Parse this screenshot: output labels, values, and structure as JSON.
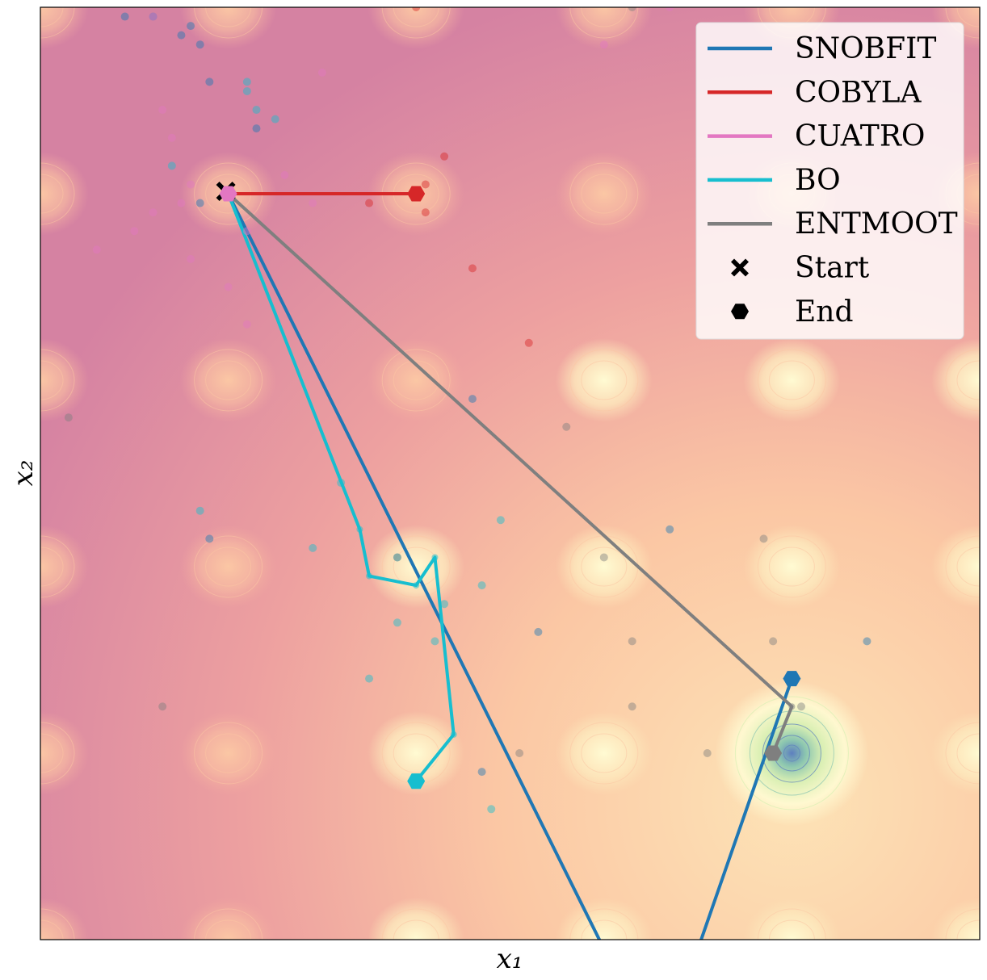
{
  "chart_data": {
    "type": "line",
    "title": "",
    "xlabel": "x₁",
    "ylabel": "x₂",
    "xlim": [
      0,
      1
    ],
    "ylim": [
      0,
      1
    ],
    "grid": false,
    "ticks_visible": false,
    "legend_position": "top-right",
    "background": "contour map of a multimodal objective (high values magenta/pink at top-left, low values yellow/green/blue near global minimum at bottom-right)",
    "contour_colors": [
      "#d07fa3",
      "#e696a3",
      "#f4ab9f",
      "#fbc7a4",
      "#fde3b6",
      "#fffbd3",
      "#d9efb3",
      "#8cc6b0",
      "#5d7fbf"
    ],
    "start": {
      "x": 0.2,
      "y": 0.8
    },
    "series": [
      {
        "name": "SNOBFIT",
        "color": "#1f77b4",
        "path": [
          [
            0.2,
            0.8
          ],
          [
            0.6,
            -0.01
          ],
          [
            0.7,
            -0.01
          ],
          [
            0.8,
            0.28
          ]
        ],
        "end": [
          0.8,
          0.28
        ],
        "samples": [
          [
            0.09,
            0.99
          ],
          [
            0.12,
            0.99
          ],
          [
            0.16,
            0.98
          ],
          [
            0.17,
            0.96
          ],
          [
            0.15,
            0.97
          ],
          [
            0.18,
            0.92
          ],
          [
            0.23,
            0.87
          ],
          [
            0.17,
            0.79
          ],
          [
            0.46,
            0.58
          ],
          [
            0.67,
            0.44
          ],
          [
            0.18,
            0.43
          ],
          [
            0.53,
            0.33
          ],
          [
            0.88,
            0.32
          ],
          [
            0.47,
            0.18
          ]
        ]
      },
      {
        "name": "COBYLA",
        "color": "#d62728",
        "path": [
          [
            0.2,
            0.8
          ],
          [
            0.4,
            0.8
          ]
        ],
        "end": [
          0.4,
          0.8
        ],
        "samples": [
          [
            0.4,
            1.0
          ],
          [
            0.43,
            0.84
          ],
          [
            0.41,
            0.81
          ],
          [
            0.35,
            0.79
          ],
          [
            0.41,
            0.78
          ],
          [
            0.46,
            0.72
          ],
          [
            0.52,
            0.64
          ]
        ]
      },
      {
        "name": "CUATRO",
        "color": "#e377c2",
        "path": [
          [
            0.2,
            0.8
          ]
        ],
        "end": [
          0.2,
          0.8
        ],
        "samples": [
          [
            0.12,
            0.99
          ],
          [
            0.13,
            0.89
          ],
          [
            0.14,
            0.86
          ],
          [
            0.16,
            0.81
          ],
          [
            0.12,
            0.78
          ],
          [
            0.15,
            0.79
          ],
          [
            0.26,
            0.82
          ],
          [
            0.29,
            0.79
          ],
          [
            0.22,
            0.76
          ],
          [
            0.16,
            0.73
          ],
          [
            0.2,
            0.7
          ],
          [
            0.06,
            0.74
          ],
          [
            0.1,
            0.76
          ],
          [
            0.3,
            0.93
          ],
          [
            0.6,
            0.96
          ],
          [
            0.67,
            1.0
          ],
          [
            0.22,
            0.66
          ]
        ]
      },
      {
        "name": "BO",
        "color": "#17becf",
        "path": [
          [
            0.2,
            0.8
          ],
          [
            0.34,
            0.44
          ],
          [
            0.35,
            0.39
          ],
          [
            0.4,
            0.38
          ],
          [
            0.42,
            0.41
          ],
          [
            0.44,
            0.22
          ],
          [
            0.4,
            0.17
          ]
        ],
        "end": [
          0.4,
          0.17
        ],
        "samples": [
          [
            0.22,
            0.92
          ],
          [
            0.23,
            0.89
          ],
          [
            0.22,
            0.91
          ],
          [
            0.14,
            0.83
          ],
          [
            0.25,
            0.88
          ],
          [
            0.32,
            0.49
          ],
          [
            0.17,
            0.46
          ],
          [
            0.29,
            0.42
          ],
          [
            0.38,
            0.41
          ],
          [
            0.47,
            0.38
          ],
          [
            0.43,
            0.36
          ],
          [
            0.38,
            0.34
          ],
          [
            0.42,
            0.32
          ],
          [
            0.35,
            0.28
          ],
          [
            0.48,
            0.14
          ],
          [
            0.49,
            0.45
          ]
        ]
      },
      {
        "name": "ENTMOOT",
        "color": "#7f7f7f",
        "path": [
          [
            0.2,
            0.8
          ],
          [
            0.8,
            0.25
          ],
          [
            0.78,
            0.2
          ]
        ],
        "end": [
          0.78,
          0.2
        ],
        "samples": [
          [
            0.03,
            0.56
          ],
          [
            0.56,
            0.55
          ],
          [
            0.38,
            0.41
          ],
          [
            0.6,
            0.41
          ],
          [
            0.77,
            0.43
          ],
          [
            0.63,
            0.32
          ],
          [
            0.78,
            0.32
          ],
          [
            0.13,
            0.25
          ],
          [
            0.63,
            0.25
          ],
          [
            0.51,
            0.2
          ],
          [
            0.71,
            0.2
          ],
          [
            0.81,
            0.25
          ],
          [
            0.63,
            1.0
          ]
        ]
      }
    ],
    "legend": [
      {
        "label": "SNOBFIT",
        "kind": "line",
        "color": "#1f77b4"
      },
      {
        "label": "COBYLA",
        "kind": "line",
        "color": "#d62728"
      },
      {
        "label": "CUATRO",
        "kind": "line",
        "color": "#e377c2"
      },
      {
        "label": "BO",
        "kind": "line",
        "color": "#17becf"
      },
      {
        "label": "ENTMOOT",
        "kind": "line",
        "color": "#7f7f7f"
      },
      {
        "label": "Start",
        "kind": "cross-marker",
        "color": "#000000"
      },
      {
        "label": "End",
        "kind": "hexagon-marker",
        "color": "#000000"
      }
    ]
  }
}
